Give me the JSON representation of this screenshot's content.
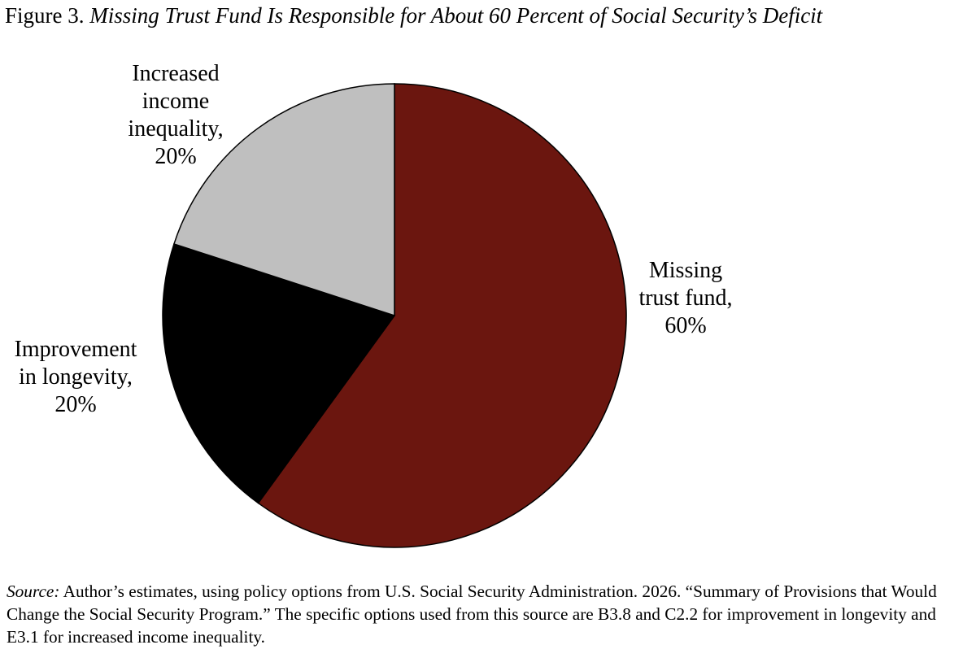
{
  "figure": {
    "prefix": "Figure 3.",
    "title": "Missing Trust Fund Is Responsible for About 60 Percent of Social Security’s Deficit"
  },
  "labels": {
    "missing": [
      "Missing",
      "trust fund,",
      "60%"
    ],
    "longevity": [
      "Improvement",
      "in longevity,",
      "20%"
    ],
    "inequality": [
      "Increased",
      "income",
      "inequality,",
      "20%"
    ]
  },
  "source": {
    "prefix": "Source:",
    "text": "Author’s estimates, using policy options from U.S. Social Security Administration. 2026. “Summary of Provisions that Would Change the Social Security Program.” The specific options used from this source are B3.8 and C2.2 for improvement in longevity and E3.1 for increased income inequality."
  },
  "chart_data": {
    "type": "pie",
    "title": "Missing Trust Fund Is Responsible for About 60 Percent of Social Security’s Deficit",
    "slices": [
      {
        "label": "Missing trust fund",
        "value": 60,
        "color": "#6b160f"
      },
      {
        "label": "Improvement in longevity",
        "value": 20,
        "color": "#000000"
      },
      {
        "label": "Increased income inequality",
        "value": 20,
        "color": "#bfbfbf"
      }
    ],
    "start_angle": "12 o'clock",
    "direction": "clockwise",
    "outline_color": "#000000"
  }
}
